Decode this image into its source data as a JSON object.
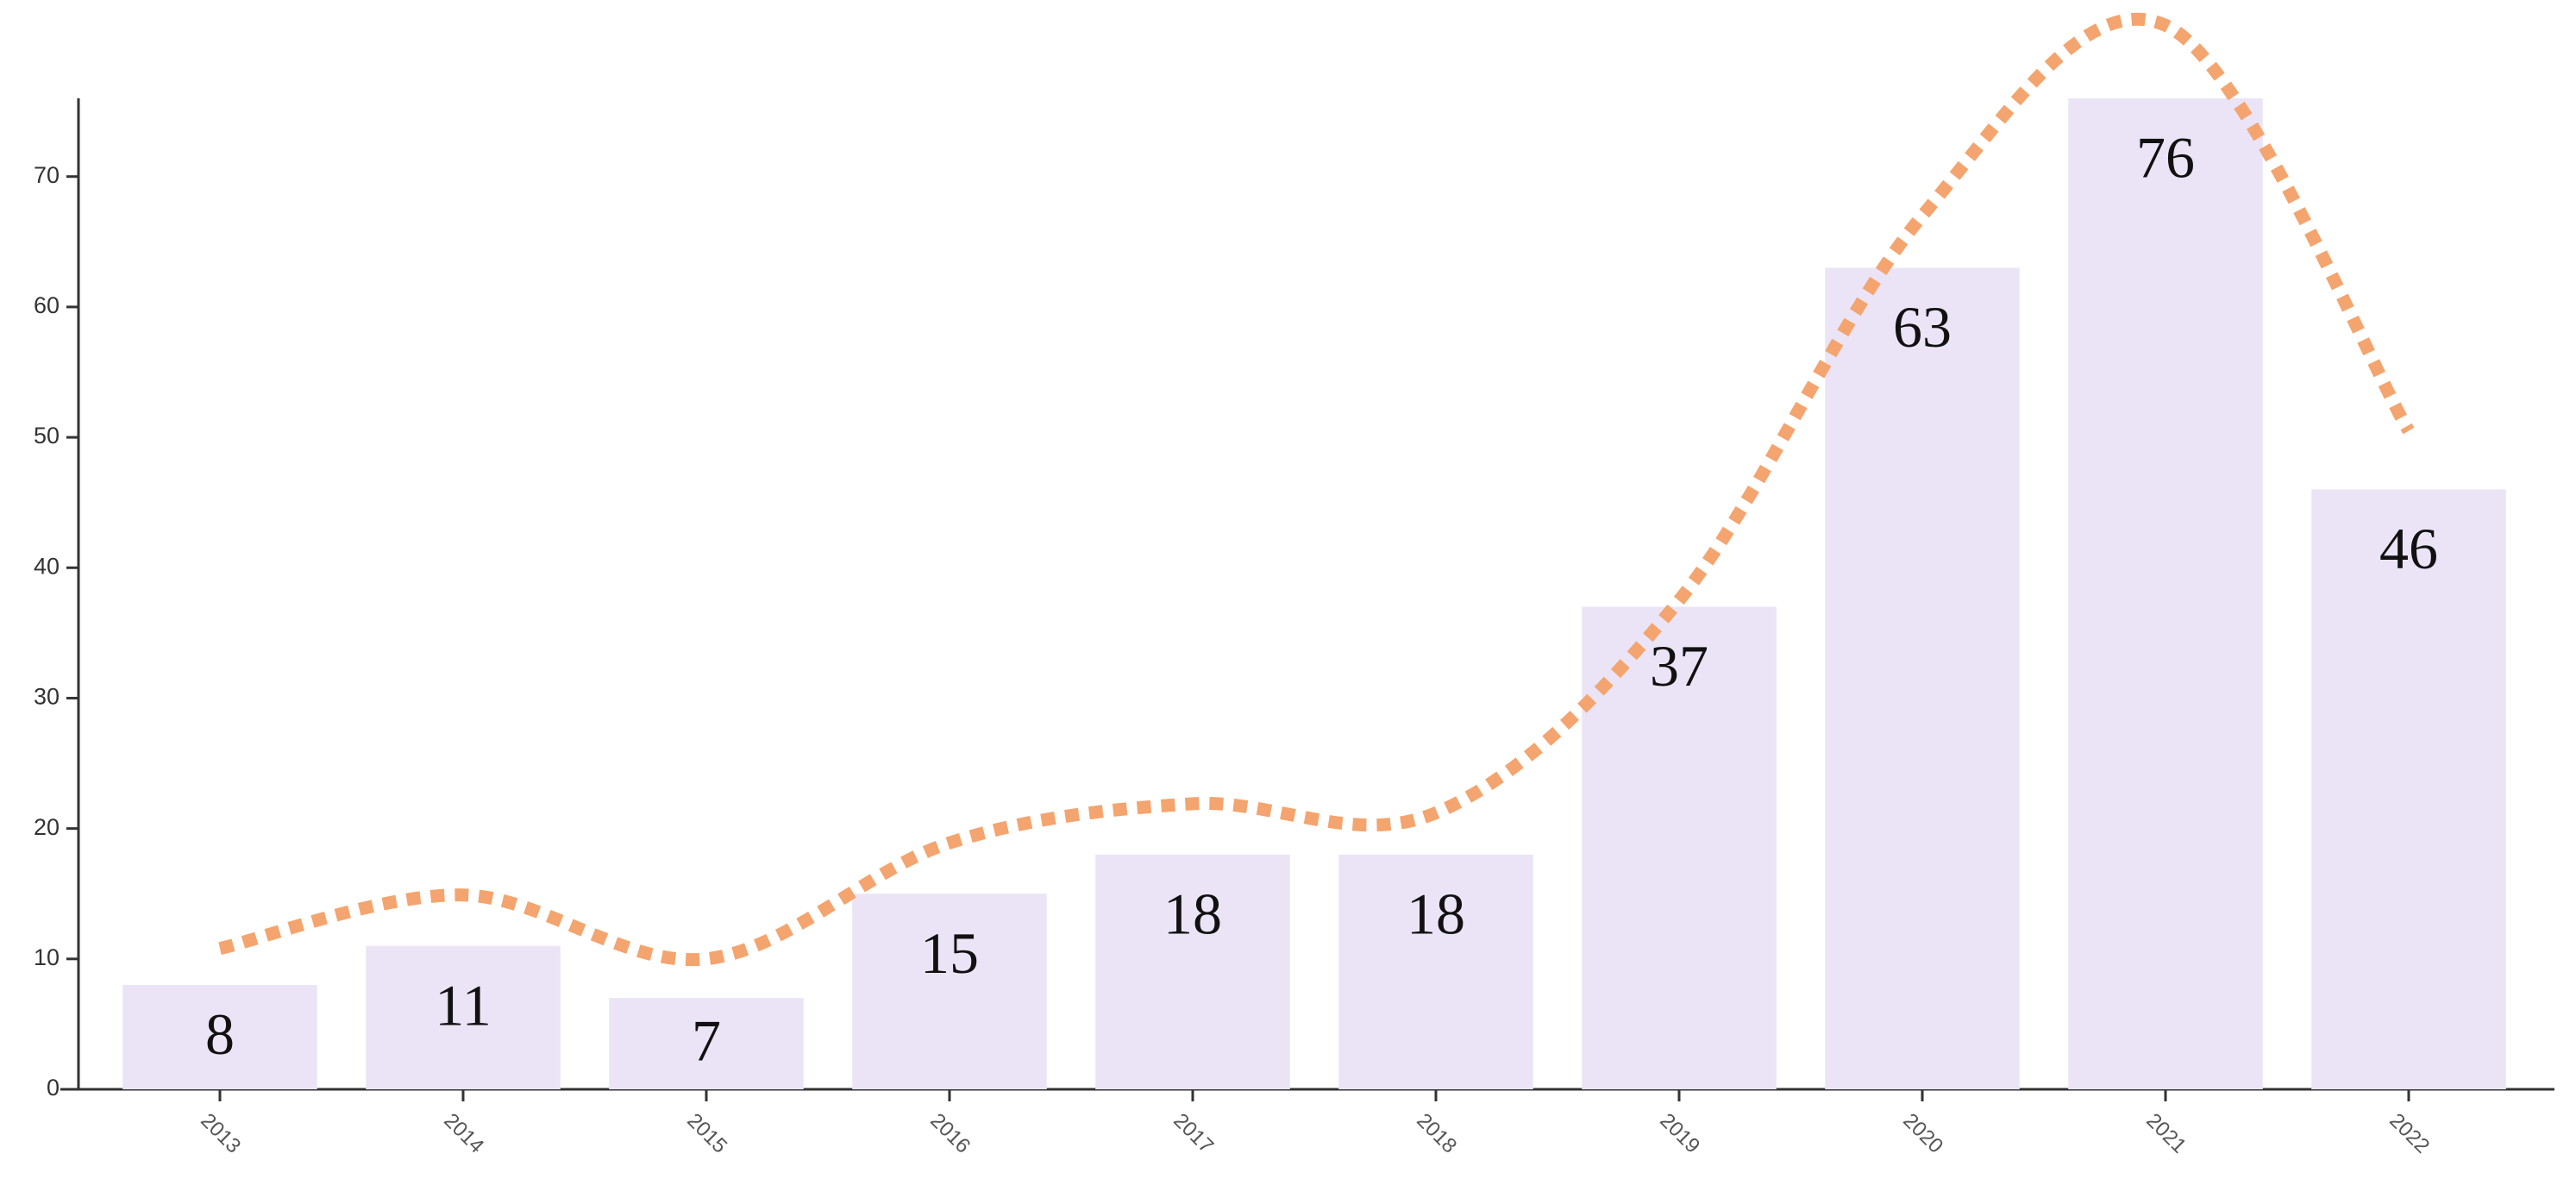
{
  "chart_data": {
    "type": "bar",
    "categories": [
      "2013",
      "2014",
      "2015",
      "2016",
      "2017",
      "2018",
      "2019",
      "2020",
      "2021",
      "2022"
    ],
    "series": [
      {
        "type": "bar",
        "color": "#ebe4f6",
        "values": [
          8,
          11,
          7,
          15,
          18,
          18,
          37,
          63,
          76,
          46
        ]
      },
      {
        "type": "line",
        "smooth": true,
        "dotted": true,
        "color": "#f4a46e",
        "values": [
          10.8,
          14.9,
          10,
          18.9,
          21.9,
          21.2,
          37.5,
          67,
          81.6,
          50.5
        ]
      }
    ],
    "ylim": [
      0,
      76
    ],
    "yticks": [
      0,
      10,
      20,
      30,
      40,
      50,
      60,
      70
    ],
    "grid": false
  }
}
